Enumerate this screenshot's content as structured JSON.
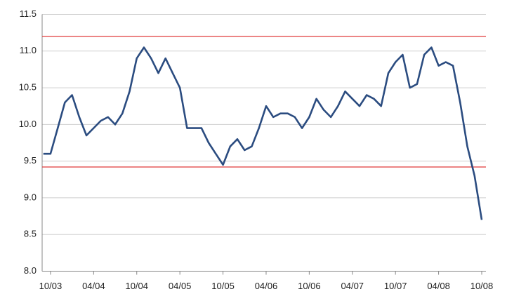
{
  "chart_data": {
    "type": "line",
    "x": [
      "2003-09",
      "2003-10",
      "2003-11",
      "2003-12",
      "2004-01",
      "2004-02",
      "2004-03",
      "2004-04",
      "2004-05",
      "2004-06",
      "2004-07",
      "2004-08",
      "2004-09",
      "2004-10",
      "2004-11",
      "2004-12",
      "2005-01",
      "2005-02",
      "2005-03",
      "2005-04",
      "2005-05",
      "2005-06",
      "2005-07",
      "2005-08",
      "2005-09",
      "2005-10",
      "2005-11",
      "2005-12",
      "2006-01",
      "2006-02",
      "2006-03",
      "2006-04",
      "2006-05",
      "2006-06",
      "2006-07",
      "2006-08",
      "2006-09",
      "2006-10",
      "2006-11",
      "2006-12",
      "2007-01",
      "2007-02",
      "2007-03",
      "2007-04",
      "2007-05",
      "2007-06",
      "2007-07",
      "2007-08",
      "2007-09",
      "2007-10",
      "2007-11",
      "2007-12",
      "2008-01",
      "2008-02",
      "2008-03",
      "2008-04",
      "2008-05",
      "2008-06",
      "2008-07",
      "2008-08",
      "2008-09",
      "2008-10"
    ],
    "series": [
      {
        "color": "#2b4c80",
        "values": [
          9.6,
          9.6,
          9.95,
          10.3,
          10.4,
          10.1,
          9.85,
          9.95,
          10.05,
          10.1,
          10.0,
          10.15,
          10.45,
          10.9,
          11.05,
          10.9,
          10.7,
          10.9,
          10.7,
          10.5,
          9.95,
          9.95,
          9.95,
          9.75,
          9.6,
          9.45,
          9.7,
          9.8,
          9.65,
          9.7,
          9.95,
          10.25,
          10.1,
          10.15,
          10.15,
          10.1,
          9.95,
          10.1,
          10.35,
          10.2,
          10.1,
          10.25,
          10.45,
          10.35,
          10.25,
          10.4,
          10.35,
          10.25,
          10.7,
          10.85,
          10.95,
          10.5,
          10.55,
          10.95,
          11.05,
          10.8,
          10.85,
          10.8,
          10.3,
          9.7,
          9.3,
          8.7
        ]
      }
    ],
    "reference_lines": {
      "color": "#e03a3a",
      "values": [
        11.2,
        9.42
      ]
    },
    "xlim": [
      "2003-09",
      "2008-10"
    ],
    "xticks": [
      {
        "value": "2003-10",
        "label": "10/03"
      },
      {
        "value": "2004-04",
        "label": "04/04"
      },
      {
        "value": "2004-10",
        "label": "10/04"
      },
      {
        "value": "2005-04",
        "label": "04/05"
      },
      {
        "value": "2005-10",
        "label": "10/05"
      },
      {
        "value": "2006-04",
        "label": "04/06"
      },
      {
        "value": "2006-10",
        "label": "10/06"
      },
      {
        "value": "2007-04",
        "label": "04/07"
      },
      {
        "value": "2007-10",
        "label": "10/07"
      },
      {
        "value": "2008-04",
        "label": "04/08"
      },
      {
        "value": "2008-10",
        "label": "10/08"
      }
    ],
    "ylim": [
      8.0,
      11.5
    ],
    "yticks": [
      {
        "value": 8,
        "label": "8.0"
      },
      8.5,
      {
        "value": 9,
        "label": "9.0"
      },
      9.5,
      {
        "value": 10,
        "label": "10.0"
      },
      10.5,
      {
        "value": 11,
        "label": "11.0"
      },
      11.5
    ],
    "grid": true
  }
}
